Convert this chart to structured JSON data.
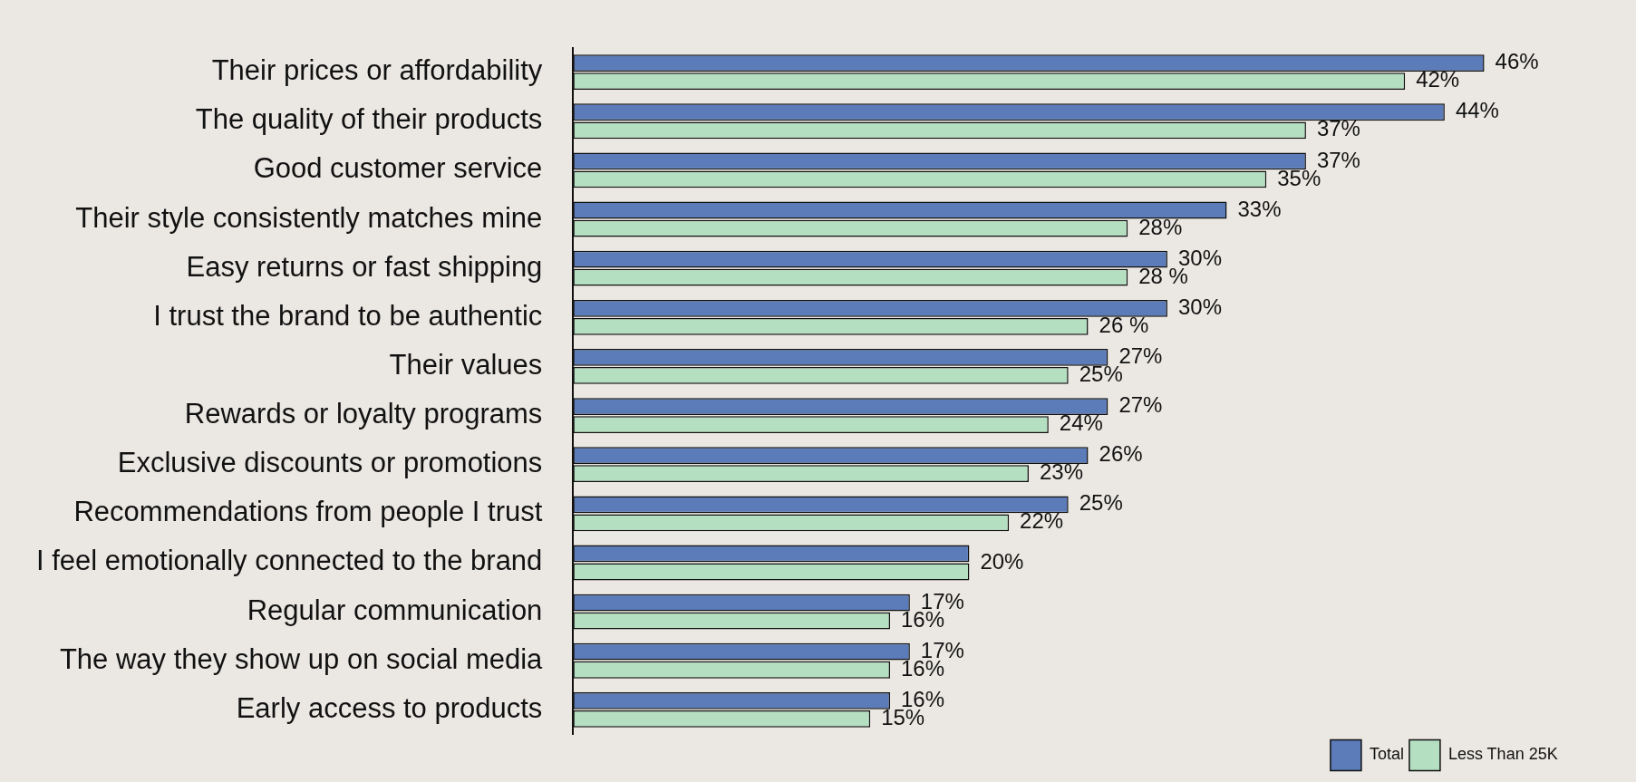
{
  "chart_data": {
    "type": "bar",
    "orientation": "horizontal",
    "categories": [
      "Their prices or affordability",
      "The quality of their products",
      "Good customer service",
      "Their style consistently matches mine",
      "Easy returns or fast shipping",
      "I trust the brand to be authentic",
      "Their values",
      "Rewards or loyalty programs",
      "Exclusive discounts or promotions",
      "Recommendations from people I trust",
      "I feel emotionally connected to the brand",
      "Regular communication",
      "The way they show up on social media",
      "Early access to products"
    ],
    "series": [
      {
        "name": "Total",
        "color": "#5b7bb9",
        "values": [
          46,
          44,
          37,
          33,
          30,
          30,
          27,
          27,
          26,
          25,
          20,
          17,
          17,
          16
        ],
        "value_labels": [
          "46%",
          "44%",
          "37%",
          "33%",
          "30%",
          "30%",
          "27%",
          "27%",
          "26%",
          "25%",
          "20%",
          "17%",
          "17%",
          "16%"
        ]
      },
      {
        "name": "Less Than 25K",
        "color": "#b5dfc1",
        "values": [
          42,
          37,
          35,
          28,
          28,
          26,
          25,
          24,
          23,
          22,
          20,
          16,
          16,
          15
        ],
        "value_labels": [
          "42%",
          "37%",
          "35%",
          "28%",
          "28 %",
          "26 %",
          "25%",
          "24%",
          "23%",
          "22%",
          null,
          "16%",
          "16%",
          "15%"
        ]
      }
    ],
    "legend": "bottom right",
    "tick_labels": "y"
  }
}
